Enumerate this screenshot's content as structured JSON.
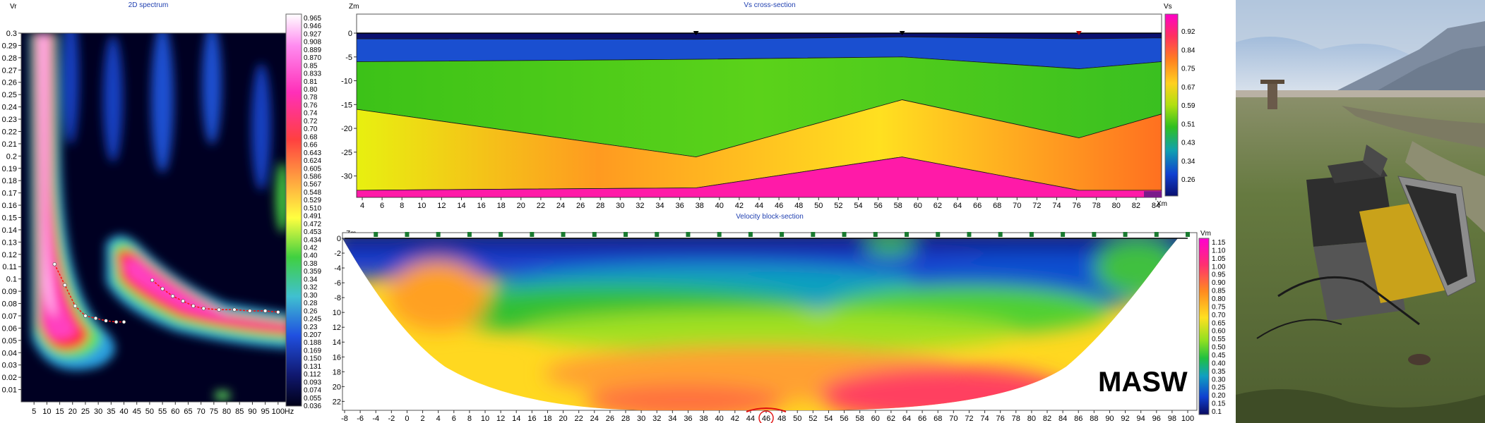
{
  "spectrum": {
    "title": "2D spectrum",
    "ylabel": "Vr",
    "xunit": "Hz",
    "x_ticks": [
      "5",
      "10",
      "15",
      "20",
      "25",
      "30",
      "35",
      "40",
      "45",
      "50",
      "55",
      "60",
      "65",
      "70",
      "75",
      "80",
      "85",
      "90",
      "95",
      "100"
    ],
    "y_ticks": [
      "0.3",
      "0.29",
      "0.28",
      "0.27",
      "0.26",
      "0.25",
      "0.24",
      "0.23",
      "0.22",
      "0.21",
      "0.2",
      "0.19",
      "0.18",
      "0.17",
      "0.16",
      "0.15",
      "0.14",
      "0.13",
      "0.12",
      "0.11",
      "0.1",
      "0.09",
      "0.08",
      "0.07",
      "0.06",
      "0.05",
      "0.04",
      "0.03",
      "0.02",
      "0.01"
    ],
    "colorbar": [
      "0.965",
      "0.946",
      "0.927",
      "0.908",
      "0.889",
      "0.870",
      "0.85",
      "0.833",
      "0.81",
      "0.80",
      "0.78",
      "0.76",
      "0.74",
      "0.72",
      "0.70",
      "0.68",
      "0.66",
      "0.643",
      "0.624",
      "0.605",
      "0.586",
      "0.567",
      "0.548",
      "0.529",
      "0.510",
      "0.491",
      "0.472",
      "0.453",
      "0.434",
      "0.42",
      "0.40",
      "0.38",
      "0.359",
      "0.34",
      "0.32",
      "0.30",
      "0.28",
      "0.26",
      "0.245",
      "0.23",
      "0.207",
      "0.188",
      "0.169",
      "0.150",
      "0.131",
      "0.112",
      "0.093",
      "0.074",
      "0.055",
      "0.036"
    ],
    "picks": {
      "curve1": [
        [
          13,
          0.112
        ],
        [
          17,
          0.095
        ],
        [
          21,
          0.078
        ],
        [
          25,
          0.07
        ],
        [
          29,
          0.068
        ],
        [
          33,
          0.066
        ],
        [
          37,
          0.065
        ],
        [
          40,
          0.065
        ]
      ],
      "curve2": [
        [
          51,
          0.099
        ],
        [
          55,
          0.092
        ],
        [
          59,
          0.086
        ],
        [
          63,
          0.082
        ],
        [
          67,
          0.078
        ],
        [
          71,
          0.076
        ],
        [
          77,
          0.075
        ],
        [
          83,
          0.075
        ],
        [
          89,
          0.074
        ],
        [
          95,
          0.074
        ],
        [
          100,
          0.073
        ]
      ]
    }
  },
  "vs_section": {
    "title": "Vs cross-section",
    "ylabel": "Zm",
    "xlabel": "Xm",
    "cb_label": "Vs",
    "x_ticks": [
      "4",
      "6",
      "8",
      "10",
      "12",
      "14",
      "16",
      "18",
      "20",
      "22",
      "24",
      "26",
      "28",
      "30",
      "32",
      "34",
      "36",
      "38",
      "40",
      "42",
      "44",
      "46",
      "48",
      "50",
      "52",
      "54",
      "56",
      "58",
      "60",
      "62",
      "64",
      "66",
      "68",
      "70",
      "72",
      "74",
      "76",
      "78",
      "80",
      "82",
      "84"
    ],
    "y_ticks": [
      "0",
      "-5",
      "-10",
      "-15",
      "-20",
      "-25",
      "-30"
    ],
    "colorbar": [
      "0.92",
      "0.84",
      "0.75",
      "0.67",
      "0.59",
      "0.51",
      "0.43",
      "0.34",
      "0.26"
    ],
    "layers": [
      {
        "x": [
          4,
          37,
          58,
          76,
          85
        ],
        "z_top": [
          0,
          0,
          0,
          0,
          0
        ],
        "z_bottom": [
          -1.2,
          -1.3,
          -0.8,
          -1.2,
          -1.0
        ],
        "vs": 0.18
      },
      {
        "x": [
          4,
          37,
          58,
          76,
          85
        ],
        "z_top": [
          -1.2,
          -1.3,
          -0.8,
          -1.2,
          -1.0
        ],
        "z_bottom": [
          -6,
          -5.5,
          -5,
          -7.5,
          -6
        ],
        "vs": 0.32
      },
      {
        "x": [
          4,
          37,
          58,
          76,
          85
        ],
        "z_top": [
          -6,
          -5.5,
          -5,
          -7.5,
          -6
        ],
        "z_bottom": [
          -16,
          -26,
          -14,
          -22,
          -17
        ],
        "vs": 0.56
      },
      {
        "x": [
          4,
          37,
          58,
          76,
          85
        ],
        "z_top": [
          -16,
          -26,
          -14,
          -22,
          -17
        ],
        "z_bottom": [
          -33,
          -32.5,
          -26,
          -33,
          -33
        ],
        "vs": 0.72
      },
      {
        "x": [
          4,
          37,
          58,
          76,
          85
        ],
        "z_top": [
          -33,
          -32.5,
          -26,
          -33,
          -33
        ],
        "z_bottom": [
          -34.5,
          -34.5,
          -34.5,
          -34.5,
          -34.5
        ],
        "vs": 0.9
      }
    ],
    "markers": [
      37,
      58,
      76
    ]
  },
  "block_section": {
    "title": "Velocity block-section",
    "ylabel": "Zm",
    "cb_label": "Vm",
    "x_ticks": [
      "-8",
      "-6",
      "-4",
      "-2",
      "0",
      "2",
      "4",
      "6",
      "8",
      "10",
      "12",
      "14",
      "16",
      "18",
      "20",
      "22",
      "24",
      "26",
      "28",
      "30",
      "32",
      "34",
      "36",
      "38",
      "40",
      "42",
      "44",
      "46",
      "48",
      "50",
      "52",
      "54",
      "56",
      "58",
      "60",
      "62",
      "64",
      "66",
      "68",
      "70",
      "72",
      "74",
      "76",
      "78",
      "80",
      "82",
      "84",
      "86",
      "88",
      "90",
      "92",
      "94",
      "96",
      "98",
      "100"
    ],
    "y_ticks": [
      "0",
      "-2",
      "-4",
      "-6",
      "-8",
      "-10",
      "-12",
      "-14",
      "-16",
      "-18",
      "-20",
      "-22"
    ],
    "colorbar": [
      "1.15",
      "1.10",
      "1.05",
      "1.00",
      "0.95",
      "0.90",
      "0.85",
      "0.80",
      "0.75",
      "0.70",
      "0.65",
      "0.60",
      "0.55",
      "0.50",
      "0.45",
      "0.40",
      "0.35",
      "0.30",
      "0.25",
      "0.20",
      "0.15",
      "0.1"
    ],
    "geophones": [
      -4,
      0,
      4,
      8,
      12,
      16,
      20,
      24,
      28,
      32,
      36,
      40,
      44,
      48,
      52,
      56,
      60,
      64,
      68,
      72,
      76,
      80,
      84,
      88,
      92,
      96,
      100
    ],
    "highlighted_tick": "46"
  },
  "label": "MASW",
  "photo": {
    "sky_top": "#7fa3cf",
    "sky_bottom": "#dfe6ee",
    "grass": "#5a6b3c",
    "case_color": "#3a3a3a"
  }
}
